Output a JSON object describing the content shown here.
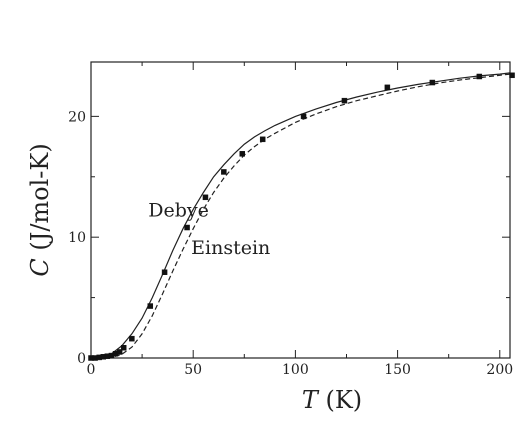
{
  "chart_data": {
    "type": "scatter",
    "xlabel": "T (K)",
    "ylabel": "C (J/mol-K)",
    "xlim": [
      0,
      205
    ],
    "ylim": [
      0,
      24.5
    ],
    "x_ticks": [
      0,
      50,
      100,
      150,
      200
    ],
    "y_ticks": [
      0,
      10,
      20
    ],
    "grid": false,
    "annotations": [
      {
        "text": "Debye",
        "x": 28,
        "y": 11.7
      },
      {
        "text": "Einstein",
        "x": 49,
        "y": 8.6
      }
    ],
    "series": [
      {
        "style": "solid",
        "x": [
          0,
          5,
          10,
          15,
          20,
          25,
          30,
          35,
          40,
          45,
          50,
          55,
          60,
          65,
          70,
          75,
          80,
          85,
          90,
          100,
          110,
          120,
          130,
          140,
          150,
          160,
          170,
          180,
          190,
          200,
          205
        ],
        "y": [
          0,
          0.05,
          0.35,
          1.0,
          2.0,
          3.3,
          5.0,
          6.9,
          8.9,
          10.7,
          12.3,
          13.7,
          15.0,
          16.0,
          16.9,
          17.7,
          18.3,
          18.8,
          19.25,
          20.0,
          20.6,
          21.15,
          21.6,
          22.0,
          22.35,
          22.65,
          22.9,
          23.15,
          23.35,
          23.5,
          23.6
        ]
      },
      {
        "style": "dashed",
        "x": [
          0,
          5,
          10,
          15,
          20,
          25,
          30,
          35,
          40,
          45,
          50,
          55,
          60,
          65,
          70,
          75,
          80,
          85,
          90,
          100,
          110,
          120,
          130,
          140,
          150,
          160,
          170,
          180,
          190,
          200,
          205
        ],
        "y": [
          0,
          0,
          0.05,
          0.3,
          0.9,
          2.0,
          3.5,
          5.3,
          7.2,
          9.0,
          10.7,
          12.3,
          13.7,
          14.9,
          15.9,
          16.8,
          17.5,
          18.1,
          18.6,
          19.5,
          20.2,
          20.8,
          21.3,
          21.7,
          22.1,
          22.45,
          22.75,
          23.0,
          23.2,
          23.4,
          23.5
        ]
      },
      {
        "style": "markers",
        "x": [
          0,
          2,
          4,
          6,
          8,
          10,
          12,
          14,
          16,
          20,
          29,
          36,
          47,
          56,
          65,
          74,
          84,
          104,
          124,
          145,
          167,
          190,
          206
        ],
        "y": [
          0,
          0,
          0.05,
          0.1,
          0.15,
          0.2,
          0.35,
          0.5,
          0.85,
          1.6,
          4.3,
          7.1,
          10.8,
          13.3,
          15.4,
          16.9,
          18.1,
          20.0,
          21.3,
          22.4,
          22.8,
          23.3,
          23.4
        ]
      }
    ]
  }
}
